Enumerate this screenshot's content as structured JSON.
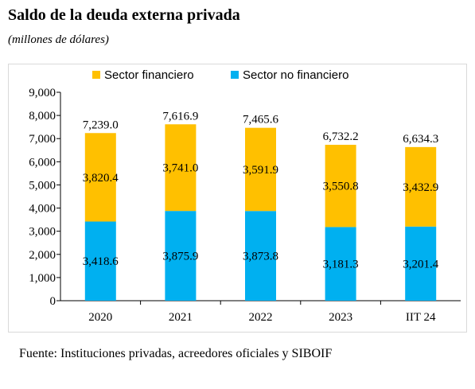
{
  "title": "Saldo de la deuda externa privada",
  "subtitle": "(millones de dólares)",
  "source": "Fuente: Instituciones privadas, acreedores oficiales y SIBOIF",
  "colors": {
    "sector_financiero": "#FFC000",
    "sector_no_financiero": "#00B0F0"
  },
  "chart_data": {
    "type": "bar",
    "stacked": true,
    "categories": [
      "2020",
      "2021",
      "2022",
      "2023",
      "IIT 24"
    ],
    "series": [
      {
        "name": "Sector no financiero",
        "values": [
          3418.6,
          3875.9,
          3873.8,
          3181.3,
          3201.4
        ],
        "labels": [
          "3,418.6",
          "3,875.9",
          "3,873.8",
          "3,181.3",
          "3,201.4"
        ]
      },
      {
        "name": "Sector financiero",
        "values": [
          3820.4,
          3741.0,
          3591.9,
          3550.8,
          3432.9
        ],
        "labels": [
          "3,820.4",
          "3,741.0",
          "3,591.9",
          "3,550.8",
          "3,432.9"
        ]
      }
    ],
    "totals": [
      7239.0,
      7616.9,
      7465.6,
      6732.2,
      6634.3
    ],
    "total_labels": [
      "7,239.0",
      "7,616.9",
      "7,465.6",
      "6,732.2",
      "6,634.3"
    ],
    "legend": [
      "Sector financiero",
      "Sector no financiero"
    ],
    "legend_position": "top",
    "ylim": [
      0,
      9000
    ],
    "yticks": [
      0,
      1000,
      2000,
      3000,
      4000,
      5000,
      6000,
      7000,
      8000,
      9000
    ],
    "ytick_labels": [
      "0",
      "1,000",
      "2,000",
      "3,000",
      "4,000",
      "5,000",
      "6,000",
      "7,000",
      "8,000",
      "9,000"
    ],
    "grid": false
  }
}
